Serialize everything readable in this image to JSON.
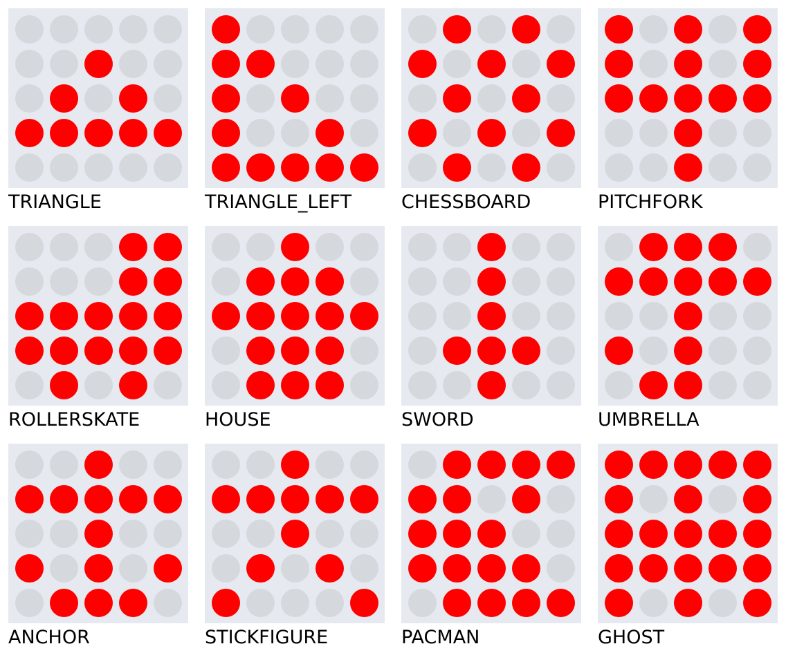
{
  "colors": {
    "on": "#ff0000",
    "off": "#d5d8dd",
    "panel": "#e6e9ef"
  },
  "patterns": [
    {
      "label": "TRIANGLE",
      "grid": [
        [
          0,
          0,
          0,
          0,
          0
        ],
        [
          0,
          0,
          1,
          0,
          0
        ],
        [
          0,
          1,
          0,
          1,
          0
        ],
        [
          1,
          1,
          1,
          1,
          1
        ],
        [
          0,
          0,
          0,
          0,
          0
        ]
      ]
    },
    {
      "label": "TRIANGLE_LEFT",
      "grid": [
        [
          1,
          0,
          0,
          0,
          0
        ],
        [
          1,
          1,
          0,
          0,
          0
        ],
        [
          1,
          0,
          1,
          0,
          0
        ],
        [
          1,
          0,
          0,
          1,
          0
        ],
        [
          1,
          1,
          1,
          1,
          1
        ]
      ]
    },
    {
      "label": "CHESSBOARD",
      "grid": [
        [
          0,
          1,
          0,
          1,
          0
        ],
        [
          1,
          0,
          1,
          0,
          1
        ],
        [
          0,
          1,
          0,
          1,
          0
        ],
        [
          1,
          0,
          1,
          0,
          1
        ],
        [
          0,
          1,
          0,
          1,
          0
        ]
      ]
    },
    {
      "label": "PITCHFORK",
      "grid": [
        [
          1,
          0,
          1,
          0,
          1
        ],
        [
          1,
          0,
          1,
          0,
          1
        ],
        [
          1,
          1,
          1,
          1,
          1
        ],
        [
          0,
          0,
          1,
          0,
          0
        ],
        [
          0,
          0,
          1,
          0,
          0
        ]
      ]
    },
    {
      "label": "ROLLERSKATE",
      "grid": [
        [
          0,
          0,
          0,
          1,
          1
        ],
        [
          0,
          0,
          0,
          1,
          1
        ],
        [
          1,
          1,
          1,
          1,
          1
        ],
        [
          1,
          1,
          1,
          1,
          1
        ],
        [
          0,
          1,
          0,
          1,
          0
        ]
      ]
    },
    {
      "label": "HOUSE",
      "grid": [
        [
          0,
          0,
          1,
          0,
          0
        ],
        [
          0,
          1,
          1,
          1,
          0
        ],
        [
          1,
          1,
          1,
          1,
          1
        ],
        [
          0,
          1,
          1,
          1,
          0
        ],
        [
          0,
          1,
          1,
          1,
          0
        ]
      ]
    },
    {
      "label": "SWORD",
      "grid": [
        [
          0,
          0,
          1,
          0,
          0
        ],
        [
          0,
          0,
          1,
          0,
          0
        ],
        [
          0,
          0,
          1,
          0,
          0
        ],
        [
          0,
          1,
          1,
          1,
          0
        ],
        [
          0,
          0,
          1,
          0,
          0
        ]
      ]
    },
    {
      "label": "UMBRELLA",
      "grid": [
        [
          0,
          1,
          1,
          1,
          0
        ],
        [
          1,
          1,
          1,
          1,
          1
        ],
        [
          0,
          0,
          1,
          0,
          0
        ],
        [
          1,
          0,
          1,
          0,
          0
        ],
        [
          0,
          1,
          1,
          0,
          0
        ]
      ]
    },
    {
      "label": "ANCHOR",
      "grid": [
        [
          0,
          0,
          1,
          0,
          0
        ],
        [
          1,
          1,
          1,
          1,
          1
        ],
        [
          0,
          0,
          1,
          0,
          0
        ],
        [
          1,
          0,
          1,
          0,
          1
        ],
        [
          0,
          1,
          1,
          1,
          0
        ]
      ]
    },
    {
      "label": "STICKFIGURE",
      "grid": [
        [
          0,
          0,
          1,
          0,
          0
        ],
        [
          1,
          1,
          1,
          1,
          1
        ],
        [
          0,
          0,
          1,
          0,
          0
        ],
        [
          0,
          1,
          0,
          1,
          0
        ],
        [
          1,
          0,
          0,
          0,
          1
        ]
      ]
    },
    {
      "label": "PACMAN",
      "grid": [
        [
          0,
          1,
          1,
          1,
          1
        ],
        [
          1,
          1,
          0,
          1,
          0
        ],
        [
          1,
          1,
          1,
          0,
          0
        ],
        [
          1,
          1,
          1,
          1,
          0
        ],
        [
          0,
          1,
          1,
          1,
          1
        ]
      ]
    },
    {
      "label": "GHOST",
      "grid": [
        [
          1,
          1,
          1,
          1,
          1
        ],
        [
          1,
          0,
          1,
          0,
          1
        ],
        [
          1,
          1,
          1,
          1,
          1
        ],
        [
          1,
          1,
          1,
          1,
          1
        ],
        [
          1,
          0,
          1,
          0,
          1
        ]
      ]
    }
  ]
}
